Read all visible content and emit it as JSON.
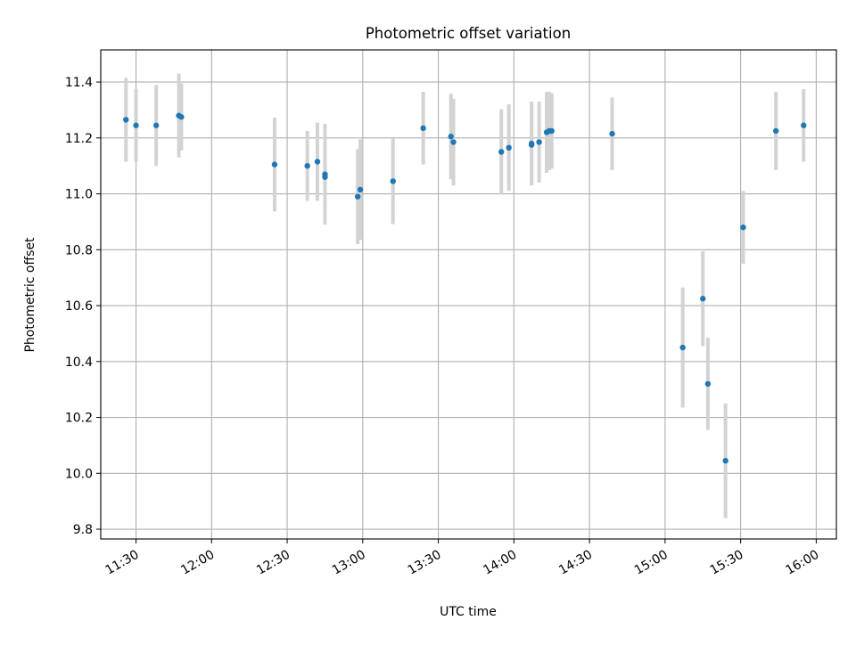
{
  "chart_data": {
    "type": "scatter",
    "title": "Photometric offset variation",
    "xlabel": "UTC time",
    "ylabel": "Photometric offset",
    "xlim": [
      "11:16",
      "16:08"
    ],
    "ylim": [
      9.765,
      11.515
    ],
    "grid": true,
    "x_ticks": [
      "11:30",
      "12:00",
      "12:30",
      "13:00",
      "13:30",
      "14:00",
      "14:30",
      "15:00",
      "15:30",
      "16:00"
    ],
    "y_ticks": [
      9.8,
      10.0,
      10.2,
      10.4,
      10.6,
      10.8,
      11.0,
      11.2,
      11.4
    ],
    "y_tick_labels": [
      "9.8",
      "10.0",
      "10.2",
      "10.4",
      "10.6",
      "10.8",
      "11.0",
      "11.2",
      "11.4"
    ],
    "colors": {
      "point": "#1f77b4",
      "errorbar": "#d3d3d3",
      "grid": "#b0b0b0"
    },
    "series": [
      {
        "marker": "point with vertical error bar",
        "points": [
          {
            "x": "11:26",
            "y": 11.265,
            "err": 0.15
          },
          {
            "x": "11:30",
            "y": 11.245,
            "err": 0.13
          },
          {
            "x": "11:38",
            "y": 11.245,
            "err": 0.145
          },
          {
            "x": "11:47",
            "y": 11.28,
            "err": 0.15
          },
          {
            "x": "11:48",
            "y": 11.275,
            "err": 0.12
          },
          {
            "x": "12:25",
            "y": 11.105,
            "err": 0.168
          },
          {
            "x": "12:38",
            "y": 11.1,
            "err": 0.125
          },
          {
            "x": "12:42",
            "y": 11.115,
            "err": 0.14
          },
          {
            "x": "12:45",
            "y": 11.07,
            "err": 0.18
          },
          {
            "x": "12:45",
            "y": 11.06,
            "err": 0.12
          },
          {
            "x": "12:58",
            "y": 10.99,
            "err": 0.17
          },
          {
            "x": "12:59",
            "y": 11.015,
            "err": 0.18
          },
          {
            "x": "13:12",
            "y": 11.045,
            "err": 0.153
          },
          {
            "x": "13:24",
            "y": 11.235,
            "err": 0.13
          },
          {
            "x": "13:35",
            "y": 11.205,
            "err": 0.153
          },
          {
            "x": "13:36",
            "y": 11.185,
            "err": 0.155
          },
          {
            "x": "13:55",
            "y": 11.15,
            "err": 0.153
          },
          {
            "x": "13:58",
            "y": 11.165,
            "err": 0.155
          },
          {
            "x": "14:07",
            "y": 11.175,
            "err": 0.14
          },
          {
            "x": "14:07",
            "y": 11.18,
            "err": 0.15
          },
          {
            "x": "14:10",
            "y": 11.185,
            "err": 0.145
          },
          {
            "x": "14:13",
            "y": 11.22,
            "err": 0.145
          },
          {
            "x": "14:14",
            "y": 11.225,
            "err": 0.14
          },
          {
            "x": "14:15",
            "y": 11.225,
            "err": 0.135
          },
          {
            "x": "14:39",
            "y": 11.215,
            "err": 0.13
          },
          {
            "x": "15:07",
            "y": 10.45,
            "err": 0.215
          },
          {
            "x": "15:15",
            "y": 10.625,
            "err": 0.17
          },
          {
            "x": "15:17",
            "y": 10.32,
            "err": 0.165
          },
          {
            "x": "15:24",
            "y": 10.045,
            "err": 0.205
          },
          {
            "x": "15:31",
            "y": 10.88,
            "err": 0.13
          },
          {
            "x": "15:44",
            "y": 11.225,
            "err": 0.14
          },
          {
            "x": "15:55",
            "y": 11.245,
            "err": 0.13
          }
        ]
      }
    ]
  }
}
